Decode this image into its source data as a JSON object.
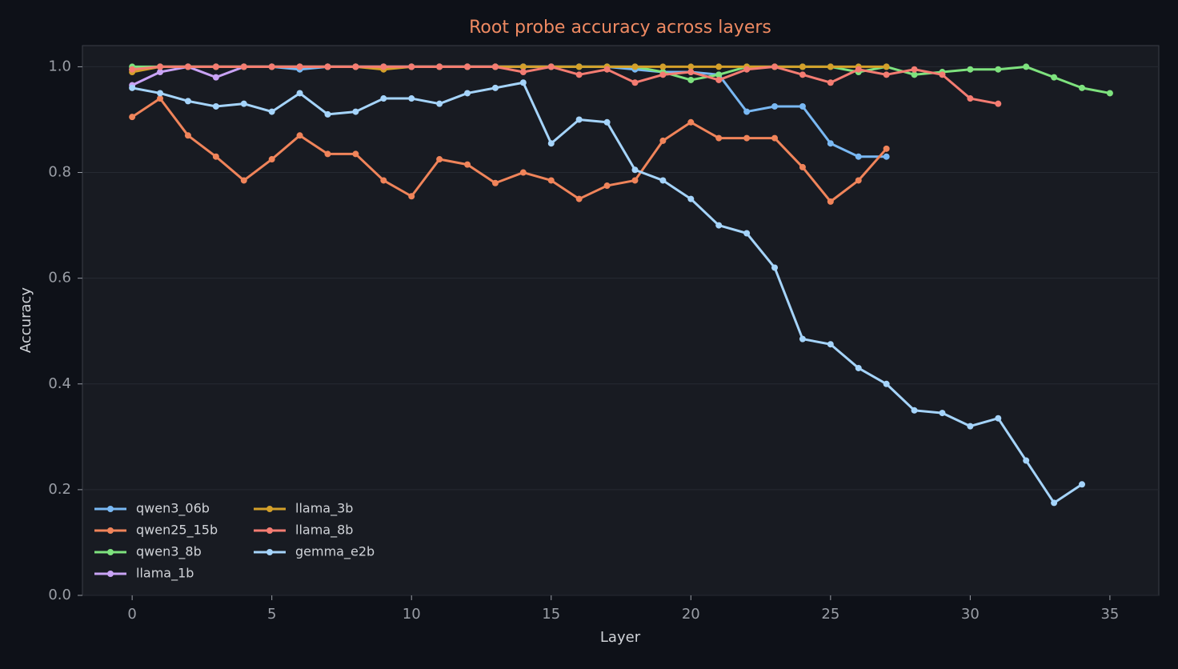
{
  "chart_data": {
    "type": "line",
    "title": "Root probe accuracy across layers",
    "x_label": "Layer",
    "y_label": "Accuracy",
    "x": [
      0,
      1,
      2,
      3,
      4,
      5,
      6,
      7,
      8,
      9,
      10,
      11,
      12,
      13,
      14,
      15,
      16,
      17,
      18,
      19,
      20,
      21,
      22,
      23,
      24,
      25,
      26,
      27,
      28,
      29,
      30,
      31,
      32,
      33,
      34,
      35
    ],
    "xlim": [
      -1.78,
      36.75
    ],
    "ylim": [
      0,
      1.04
    ],
    "xticks": [
      0,
      5,
      10,
      15,
      20,
      25,
      30,
      35
    ],
    "yticks": [
      {
        "value": 0,
        "label": "0.0"
      },
      0.2,
      0.4,
      0.6,
      0.8,
      {
        "value": 1,
        "label": "1.0"
      }
    ],
    "grid": true,
    "legend": "lower left",
    "series": [
      {
        "name": "qwen3_06b",
        "color": "#79b8f3",
        "values": [
          0.995,
          1.0,
          1.0,
          1.0,
          1.0,
          1.0,
          0.995,
          1.0,
          1.0,
          1.0,
          1.0,
          1.0,
          1.0,
          1.0,
          1.0,
          1.0,
          1.0,
          1.0,
          0.995,
          0.99,
          0.99,
          0.985,
          0.915,
          0.925,
          0.925,
          0.855,
          0.83,
          0.83,
          null,
          null,
          null,
          null,
          null,
          null,
          null,
          null
        ]
      },
      {
        "name": "qwen25_15b",
        "color": "#f0845a",
        "values": [
          0.905,
          0.94,
          0.87,
          0.83,
          0.785,
          0.825,
          0.87,
          0.835,
          0.835,
          0.785,
          0.755,
          0.825,
          0.815,
          0.78,
          0.8,
          0.785,
          0.75,
          0.775,
          0.785,
          0.86,
          0.895,
          0.865,
          0.865,
          0.865,
          0.81,
          0.745,
          0.785,
          0.845,
          null,
          null,
          null,
          null,
          null,
          null,
          null,
          null
        ]
      },
      {
        "name": "qwen3_8b",
        "color": "#7ee27e",
        "values": [
          1.0,
          1.0,
          1.0,
          1.0,
          1.0,
          1.0,
          1.0,
          1.0,
          1.0,
          1.0,
          1.0,
          1.0,
          1.0,
          1.0,
          1.0,
          1.0,
          1.0,
          1.0,
          1.0,
          0.99,
          0.975,
          0.985,
          1.0,
          1.0,
          1.0,
          1.0,
          0.99,
          1.0,
          0.985,
          0.99,
          0.995,
          0.995,
          1.0,
          0.98,
          0.96,
          0.95
        ]
      },
      {
        "name": "llama_1b",
        "color": "#c9a3f5",
        "values": [
          0.965,
          0.99,
          1.0,
          0.98,
          1.0,
          1.0,
          1.0,
          1.0,
          1.0,
          1.0,
          1.0,
          1.0,
          1.0,
          1.0,
          1.0,
          1.0,
          null,
          null,
          null,
          null,
          null,
          null,
          null,
          null,
          null,
          null,
          null,
          null,
          null,
          null,
          null,
          null,
          null,
          null,
          null,
          null
        ]
      },
      {
        "name": "llama_3b",
        "color": "#d4a02a",
        "values": [
          0.99,
          1.0,
          1.0,
          1.0,
          1.0,
          1.0,
          1.0,
          1.0,
          1.0,
          0.995,
          1.0,
          1.0,
          1.0,
          1.0,
          1.0,
          1.0,
          1.0,
          1.0,
          1.0,
          1.0,
          1.0,
          1.0,
          1.0,
          1.0,
          1.0,
          1.0,
          1.0,
          1.0,
          null,
          null,
          null,
          null,
          null,
          null,
          null,
          null
        ]
      },
      {
        "name": "llama_8b",
        "color": "#f47c72",
        "values": [
          0.995,
          1.0,
          1.0,
          1.0,
          1.0,
          1.0,
          1.0,
          1.0,
          1.0,
          1.0,
          1.0,
          1.0,
          1.0,
          1.0,
          0.99,
          1.0,
          0.985,
          0.995,
          0.97,
          0.985,
          0.99,
          0.975,
          0.995,
          1.0,
          0.985,
          0.97,
          0.995,
          0.985,
          0.995,
          0.985,
          0.94,
          0.93,
          null,
          null,
          null,
          null
        ]
      },
      {
        "name": "gemma_e2b",
        "color": "#a5d4fb",
        "values": [
          0.96,
          0.95,
          0.935,
          0.925,
          0.93,
          0.915,
          0.95,
          0.91,
          0.915,
          0.94,
          0.94,
          0.93,
          0.95,
          0.96,
          0.97,
          0.855,
          0.9,
          0.895,
          0.805,
          0.785,
          0.75,
          0.7,
          0.685,
          0.62,
          0.485,
          0.475,
          0.43,
          0.4,
          0.35,
          0.345,
          0.32,
          0.335,
          0.255,
          0.175,
          0.21,
          null
        ]
      }
    ]
  }
}
